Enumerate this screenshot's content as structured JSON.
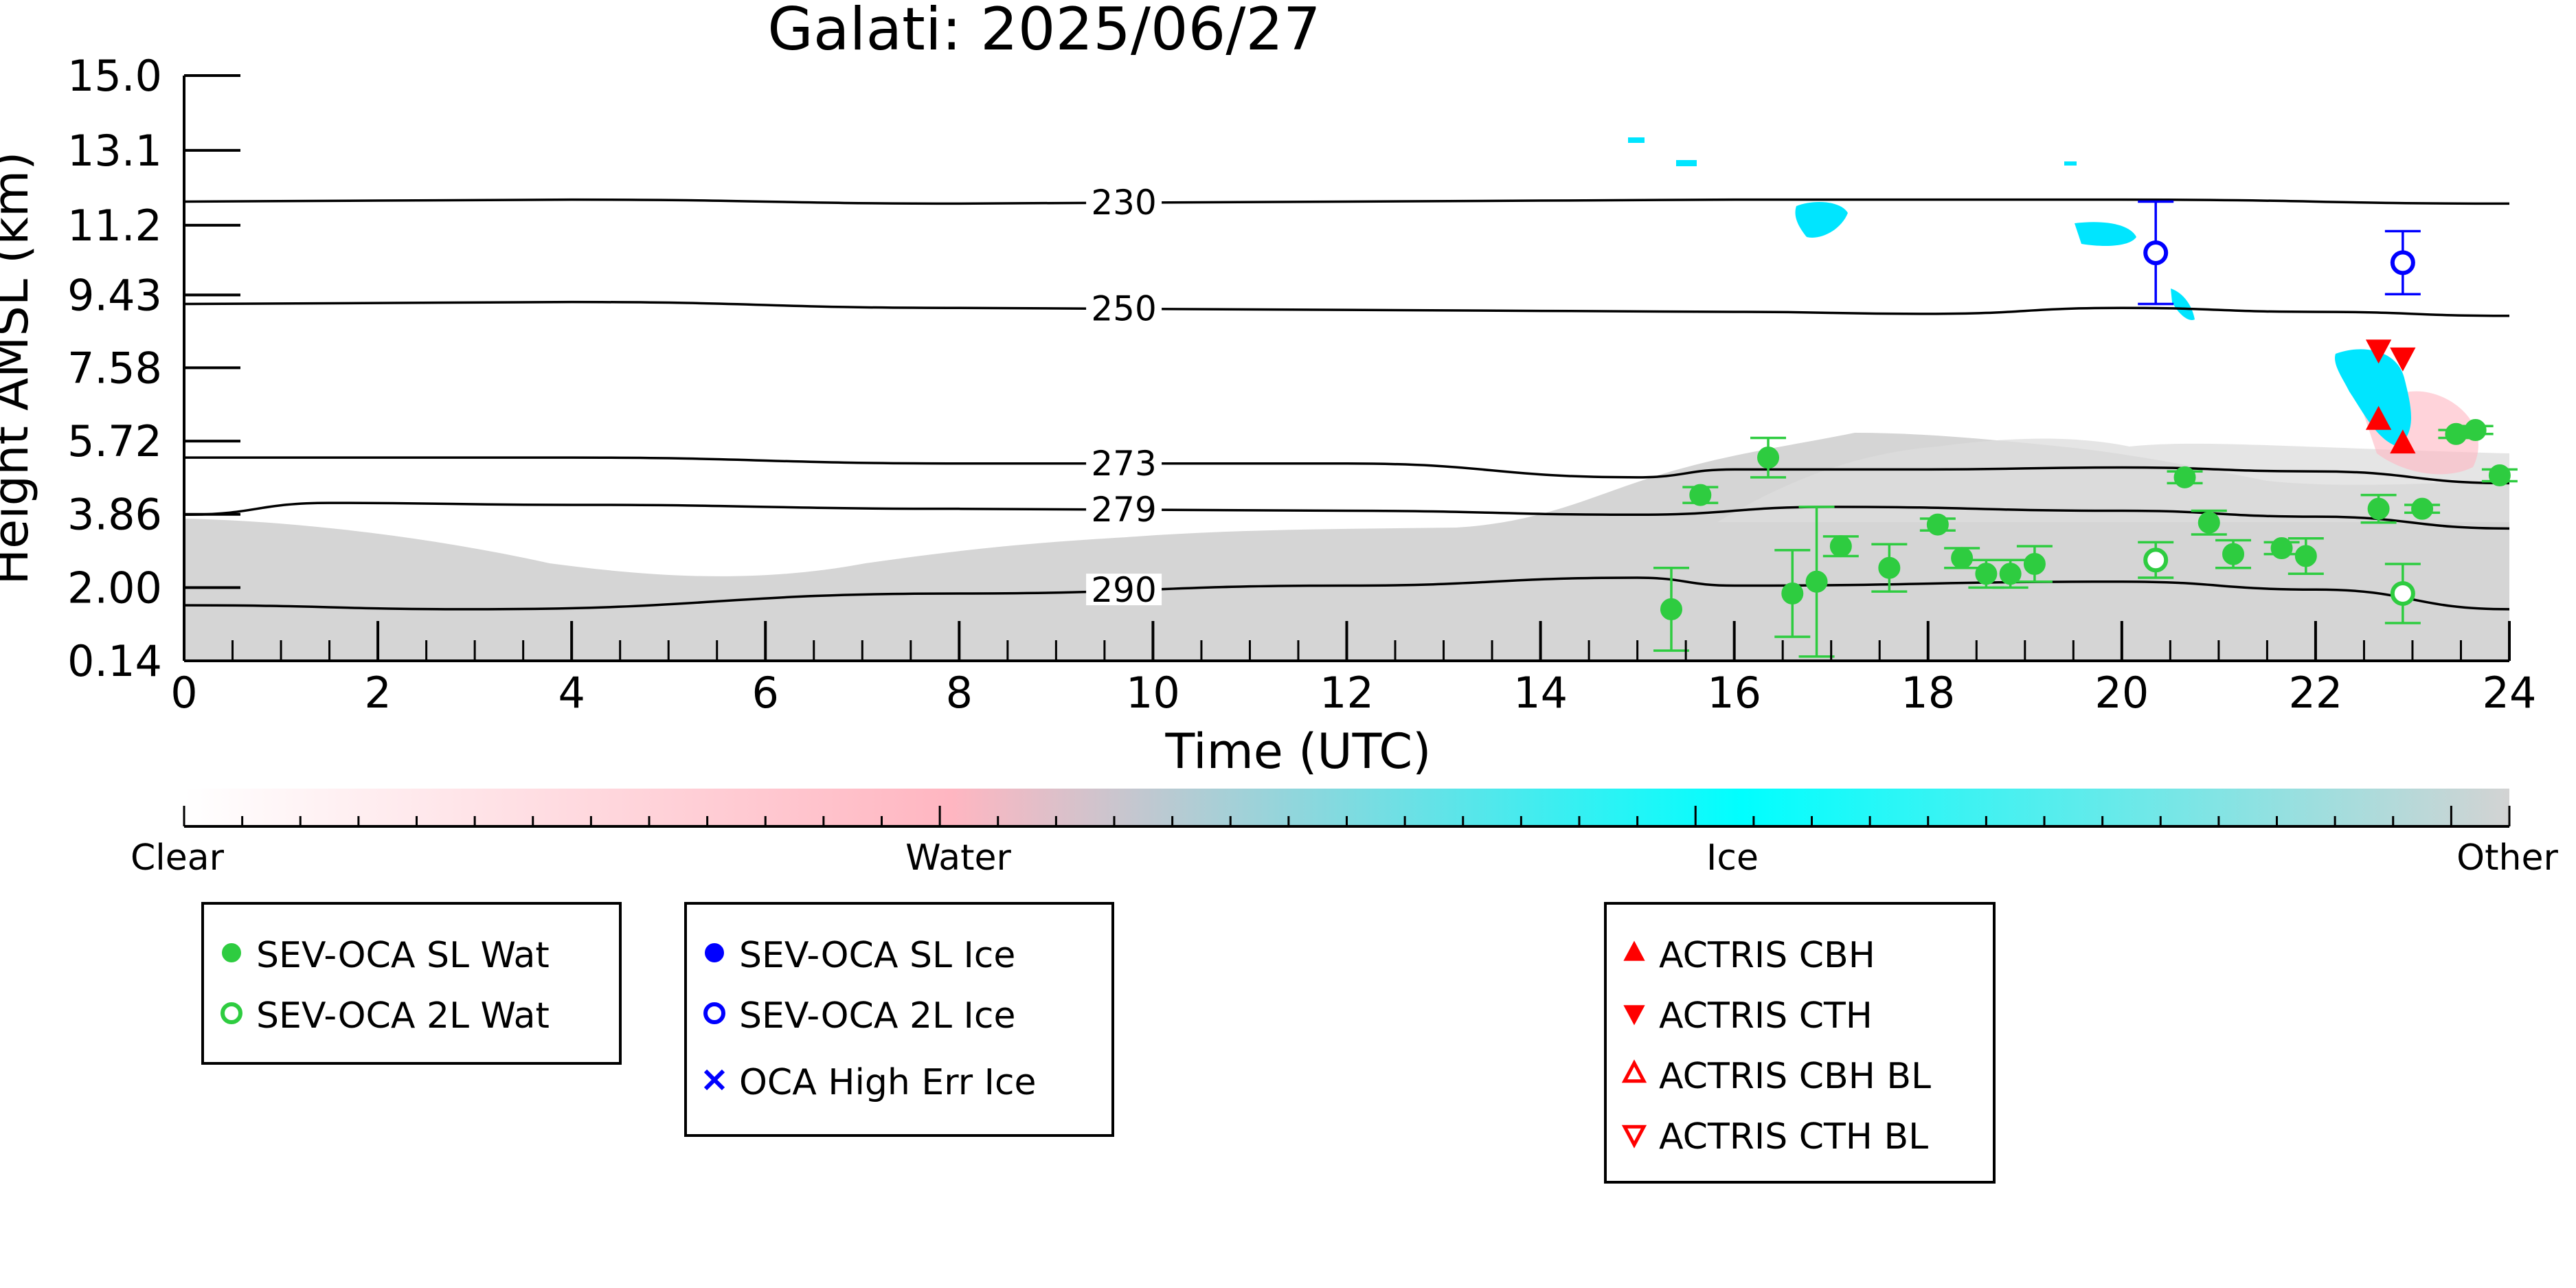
{
  "chart_data": {
    "type": "scatter",
    "title": "Galati: 2025/06/27",
    "xlabel": "Time (UTC)",
    "ylabel": "Height AMSL (km)",
    "xlim": [
      0,
      24
    ],
    "ylim": [
      0.14,
      15.0
    ],
    "x_ticks": [
      "0",
      "2",
      "4",
      "6",
      "8",
      "10",
      "12",
      "14",
      "16",
      "18",
      "20",
      "22",
      "24"
    ],
    "y_ticks": [
      "0.14",
      "2.00",
      "3.86",
      "5.72",
      "7.58",
      "9.43",
      "11.2",
      "13.1",
      "15.0"
    ],
    "colorbar": {
      "labels": [
        "Clear",
        "Water",
        "Ice",
        "Other"
      ],
      "colors": [
        "#ffffff",
        "#ffb6c1",
        "#00ffff",
        "#d3d3d3"
      ]
    },
    "contours": [
      {
        "label": "230",
        "points": [
          [
            0,
            11.8
          ],
          [
            4,
            11.85
          ],
          [
            8,
            11.75
          ],
          [
            12,
            11.8
          ],
          [
            16,
            11.85
          ],
          [
            20,
            11.85
          ],
          [
            24,
            11.75
          ]
        ]
      },
      {
        "label": "250",
        "points": [
          [
            0,
            9.2
          ],
          [
            4,
            9.25
          ],
          [
            8,
            9.1
          ],
          [
            12,
            9.05
          ],
          [
            16,
            9.0
          ],
          [
            18,
            8.95
          ],
          [
            20,
            9.1
          ],
          [
            22,
            9.0
          ],
          [
            24,
            8.9
          ]
        ]
      },
      {
        "label": "273",
        "points": [
          [
            0,
            5.3
          ],
          [
            4,
            5.3
          ],
          [
            8,
            5.15
          ],
          [
            12,
            5.15
          ],
          [
            15,
            4.8
          ],
          [
            16,
            5.0
          ],
          [
            18,
            5.0
          ],
          [
            20,
            5.05
          ],
          [
            22,
            4.95
          ],
          [
            24,
            4.65
          ]
        ]
      },
      {
        "label": "279",
        "points": [
          [
            0,
            3.85
          ],
          [
            1.5,
            4.15
          ],
          [
            4,
            4.1
          ],
          [
            8,
            4.0
          ],
          [
            12,
            3.95
          ],
          [
            15,
            3.85
          ],
          [
            17,
            4.05
          ],
          [
            20,
            3.95
          ],
          [
            22,
            3.8
          ],
          [
            24,
            3.5
          ]
        ]
      },
      {
        "label": "290",
        "points": [
          [
            0,
            1.55
          ],
          [
            3,
            1.45
          ],
          [
            8,
            1.85
          ],
          [
            12,
            2.05
          ],
          [
            15,
            2.25
          ],
          [
            16,
            2.05
          ],
          [
            20,
            2.15
          ],
          [
            22,
            1.95
          ],
          [
            24,
            1.45
          ]
        ]
      }
    ],
    "series": [
      {
        "name": "SEV-OCA SL Wat",
        "color": "#2ecc40",
        "marker": "filled-circle",
        "points": [
          {
            "x": 15.35,
            "y": 1.45,
            "err": 1.05
          },
          {
            "x": 15.65,
            "y": 4.35,
            "err": 0.2
          },
          {
            "x": 16.35,
            "y": 5.3,
            "err": 0.5
          },
          {
            "x": 16.6,
            "y": 1.85,
            "err": 1.1
          },
          {
            "x": 16.85,
            "y": 2.15,
            "err": 1.9
          },
          {
            "x": 17.1,
            "y": 3.05,
            "err": 0.25
          },
          {
            "x": 17.6,
            "y": 2.5,
            "err": 0.6
          },
          {
            "x": 18.1,
            "y": 3.6,
            "err": 0.15
          },
          {
            "x": 18.35,
            "y": 2.75,
            "err": 0.25
          },
          {
            "x": 18.6,
            "y": 2.35,
            "err": 0.35
          },
          {
            "x": 18.85,
            "y": 2.35,
            "err": 0.35
          },
          {
            "x": 19.1,
            "y": 2.6,
            "err": 0.45
          },
          {
            "x": 20.65,
            "y": 4.8,
            "err": 0.15
          },
          {
            "x": 20.9,
            "y": 3.65,
            "err": 0.3
          },
          {
            "x": 21.15,
            "y": 2.85,
            "err": 0.35
          },
          {
            "x": 21.65,
            "y": 3.0,
            "err": 0.15
          },
          {
            "x": 21.9,
            "y": 2.8,
            "err": 0.45
          },
          {
            "x": 22.65,
            "y": 4.0,
            "err": 0.35
          },
          {
            "x": 23.1,
            "y": 4.0,
            "err": 0.1
          },
          {
            "x": 23.45,
            "y": 5.9,
            "err": 0.1
          },
          {
            "x": 23.65,
            "y": 6.0,
            "err": 0.1
          },
          {
            "x": 23.9,
            "y": 4.85,
            "err": 0.15
          }
        ]
      },
      {
        "name": "SEV-OCA 2L Wat",
        "color": "#2ecc40",
        "marker": "open-circle",
        "points": [
          {
            "x": 20.35,
            "y": 2.7,
            "err": 0.45
          },
          {
            "x": 22.9,
            "y": 1.85,
            "err": 0.75
          }
        ]
      },
      {
        "name": "SEV-OCA SL Ice",
        "color": "#0000ff",
        "marker": "filled-circle",
        "points": []
      },
      {
        "name": "SEV-OCA 2L Ice",
        "color": "#0000ff",
        "marker": "open-circle",
        "points": [
          {
            "x": 20.35,
            "y": 10.5,
            "err": 1.3
          },
          {
            "x": 22.9,
            "y": 10.25,
            "err": 0.8
          }
        ]
      },
      {
        "name": "OCA High Err Ice",
        "color": "#0000ff",
        "marker": "x",
        "points": []
      },
      {
        "name": "ACTRIS CBH",
        "color": "#ff0000",
        "marker": "triangle-up",
        "points": [
          {
            "x": 22.65,
            "y": 6.25
          },
          {
            "x": 22.9,
            "y": 5.65
          }
        ]
      },
      {
        "name": "ACTRIS CTH",
        "color": "#ff0000",
        "marker": "triangle-down",
        "points": [
          {
            "x": 22.65,
            "y": 8.05
          },
          {
            "x": 22.9,
            "y": 7.85
          }
        ]
      },
      {
        "name": "ACTRIS CBH BL",
        "color": "#ff0000",
        "marker": "open-triangle-up",
        "points": []
      },
      {
        "name": "ACTRIS CTH BL",
        "color": "#ff0000",
        "marker": "open-triangle-down",
        "points": []
      }
    ],
    "legend_groups": [
      [
        "SEV-OCA SL Wat",
        "SEV-OCA 2L Wat"
      ],
      [
        "SEV-OCA SL Ice",
        "SEV-OCA 2L Ice",
        "OCA High Err Ice"
      ],
      [
        "ACTRIS CBH",
        "ACTRIS CTH",
        "ACTRIS CBH BL",
        "ACTRIS CTH BL"
      ]
    ]
  }
}
